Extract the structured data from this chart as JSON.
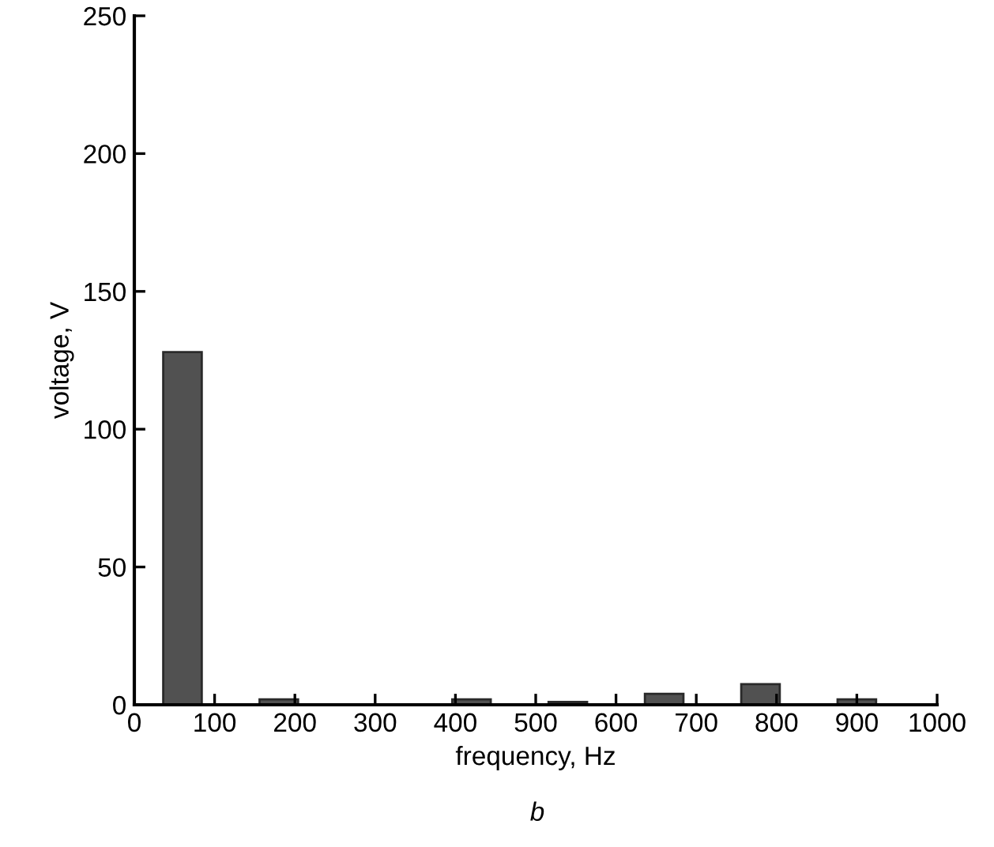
{
  "chart_data": {
    "type": "bar",
    "xlabel": "frequency, Hz",
    "ylabel": "voltage, V",
    "x": [
      60,
      180,
      420,
      540,
      660,
      780,
      900
    ],
    "values": [
      128,
      2,
      2,
      1,
      4,
      7.5,
      2
    ],
    "color": "#515151",
    "xlim": [
      0,
      1000
    ],
    "xticks": [
      0,
      100,
      200,
      300,
      400,
      500,
      600,
      700,
      800,
      900,
      1000
    ],
    "ylim": [
      0,
      250
    ],
    "yticks": [
      0,
      50,
      100,
      150,
      200,
      250
    ],
    "grid": false,
    "legend": false,
    "annotations": [
      "b"
    ]
  }
}
